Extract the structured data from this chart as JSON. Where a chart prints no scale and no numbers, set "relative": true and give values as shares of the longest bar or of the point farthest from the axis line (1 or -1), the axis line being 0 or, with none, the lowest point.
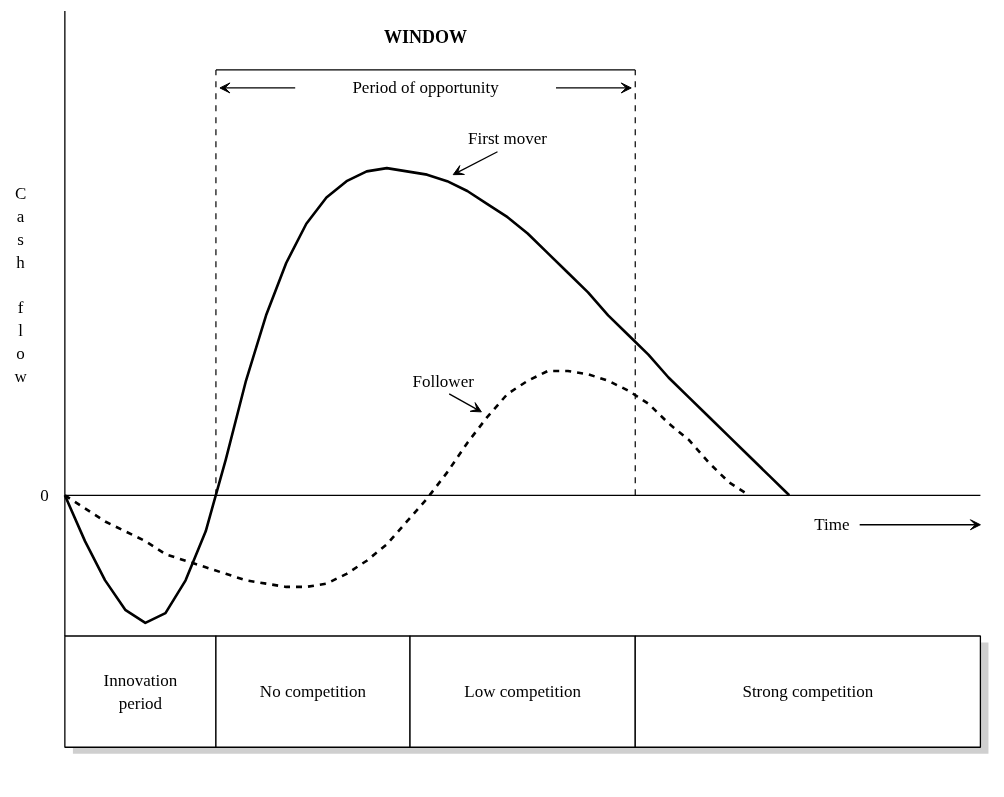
{
  "chart_data": {
    "type": "line",
    "relative": true,
    "title": "WINDOW",
    "xlabel": "Time",
    "ylabel": "Cash flow",
    "categories": [
      null,
      null,
      null,
      null,
      null,
      null,
      null,
      null,
      null,
      null,
      null,
      null,
      null,
      null,
      null,
      null,
      null,
      null,
      null,
      null,
      null,
      null,
      null,
      null,
      null,
      null,
      null,
      null,
      null,
      null,
      null,
      null,
      null,
      null,
      null,
      null,
      null,
      null,
      null,
      null,
      null,
      null,
      null,
      null,
      null,
      null
    ],
    "series": [
      {
        "name": "First mover",
        "color": "#000000",
        "line_style": "solid",
        "values": [
          0,
          -0.14,
          -0.26,
          -0.35,
          -0.39,
          -0.36,
          -0.26,
          -0.11,
          0.11,
          0.35,
          0.55,
          0.71,
          0.83,
          0.91,
          0.96,
          0.99,
          1,
          0.99,
          0.98,
          0.96,
          0.93,
          0.89,
          0.85,
          0.8,
          0.74,
          0.68,
          0.62,
          0.55,
          0.49,
          0.43,
          0.36,
          0.3,
          0.24,
          0.18,
          0.12,
          0.06,
          0,
          null,
          null,
          null,
          null,
          null,
          null,
          null,
          null,
          null
        ]
      },
      {
        "name": "Follower",
        "color": "#000000",
        "line_style": "dashed",
        "values": [
          0,
          -0.04,
          -0.08,
          -0.11,
          -0.14,
          -0.18,
          -0.2,
          -0.22,
          -0.24,
          -0.26,
          -0.27,
          -0.28,
          -0.28,
          -0.27,
          -0.24,
          -0.2,
          -0.15,
          -0.08,
          -0.01,
          0.07,
          0.16,
          0.24,
          0.31,
          0.35,
          0.38,
          0.38,
          0.37,
          0.35,
          0.32,
          0.28,
          0.22,
          0.17,
          0.1,
          0.04,
          0,
          null,
          null,
          null,
          null,
          null,
          null,
          null,
          null,
          null,
          null,
          null
        ]
      }
    ],
    "annotations": [
      "Period of opportunity",
      "Innovation period",
      "No competition",
      "Low competition",
      "Strong competition",
      "0"
    ]
  }
}
